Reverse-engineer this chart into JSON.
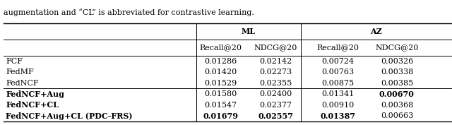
{
  "caption": "augmentation and “CL” is abbreviated for contrastive learning.",
  "rows": [
    {
      "method": "FCF",
      "ml_r20": "0.01286",
      "ml_n20": "0.02142",
      "az_r20": "0.00724",
      "az_n20": "0.00326",
      "bold": [],
      "method_bold": false
    },
    {
      "method": "FedMF",
      "ml_r20": "0.01420",
      "ml_n20": "0.02273",
      "az_r20": "0.00763",
      "az_n20": "0.00338",
      "bold": [],
      "method_bold": false
    },
    {
      "method": "FedNCF",
      "ml_r20": "0.01529",
      "ml_n20": "0.02355",
      "az_r20": "0.00875",
      "az_n20": "0.00385",
      "bold": [],
      "method_bold": false
    },
    {
      "method": "FedNCF+Aug",
      "ml_r20": "0.01580",
      "ml_n20": "0.02400",
      "az_r20": "0.01341",
      "az_n20": "0.00670",
      "bold": [
        "az_n20"
      ],
      "method_bold": true
    },
    {
      "method": "FedNCF+CL",
      "ml_r20": "0.01547",
      "ml_n20": "0.02377",
      "az_r20": "0.00910",
      "az_n20": "0.00368",
      "bold": [],
      "method_bold": true
    },
    {
      "method": "FedNCF+Aug+CL (PDC-FRS)",
      "ml_r20": "0.01679",
      "ml_n20": "0.02557",
      "az_r20": "0.01387",
      "az_n20": "0.00663",
      "bold": [
        "ml_r20",
        "ml_n20",
        "az_r20"
      ],
      "method_bold": true
    }
  ],
  "col_keys": [
    "ml_r20",
    "ml_n20",
    "az_r20",
    "az_n20"
  ],
  "divider_after_row": 2,
  "figsize": [
    6.4,
    1.77
  ],
  "dpi": 100,
  "font_size": 8.0
}
